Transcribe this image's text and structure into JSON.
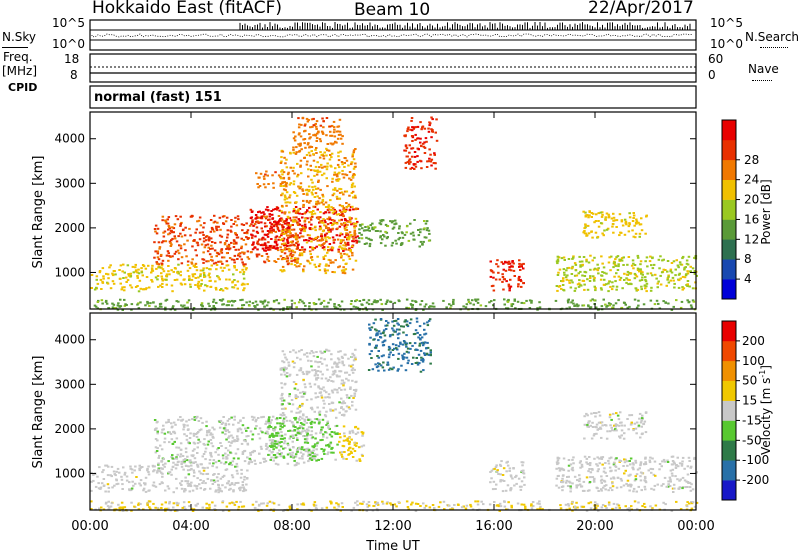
{
  "header": {
    "station": "Hokkaido East (fitACF)",
    "beam": "Beam 10",
    "date": "22/Apr/2017"
  },
  "strips": {
    "nsky_label": "N.Sky",
    "nsky_ticks": [
      "10^5",
      "10^0"
    ],
    "nsearch_label": "N.Search",
    "nsearch_ticks": [
      "10^5",
      "10^0"
    ],
    "freq_label": "Freq.",
    "freq_unit": "[MHz]",
    "freq_ticks": [
      "18",
      "8"
    ],
    "nave_label": "Nave",
    "nave_ticks": [
      "60",
      "0"
    ],
    "cpid_label": "CPID",
    "cpid_value": "normal (fast) 151"
  },
  "chart_data": [
    {
      "type": "heatmap",
      "title": "",
      "xlabel": "Time UT",
      "ylabel": "Slant Range [km]",
      "x_ticks": [
        "00:00",
        "04:00",
        "08:00",
        "12:00",
        "16:00",
        "20:00",
        "00:00"
      ],
      "xlim_hours": [
        0,
        24
      ],
      "y_ticks": [
        1000,
        2000,
        3000,
        4000
      ],
      "ylim_km": [
        180,
        4600
      ],
      "colorbar": {
        "label": "Power [dB]",
        "ticks": [
          "4",
          "8",
          "12",
          "16",
          "20",
          "24",
          "28"
        ],
        "range": [
          0,
          30
        ],
        "colors": [
          "#0000d8",
          "#1848b0",
          "#2e7050",
          "#5a9a38",
          "#9ac820",
          "#f0c000",
          "#f07800",
          "#e83000",
          "#e80000"
        ]
      },
      "regions": [
        {
          "t0": 0.0,
          "t1": 6.2,
          "r0": 600,
          "r1": 1200,
          "value": 18
        },
        {
          "t0": 2.5,
          "t1": 8.2,
          "r0": 1200,
          "r1": 2300,
          "value": 24
        },
        {
          "t0": 6.3,
          "t1": 10.6,
          "r0": 1500,
          "r1": 2500,
          "value": 28
        },
        {
          "t0": 6.5,
          "t1": 7.6,
          "r0": 2900,
          "r1": 3300,
          "value": 22
        },
        {
          "t0": 7.5,
          "t1": 10.5,
          "r0": 1000,
          "r1": 3800,
          "value": 20
        },
        {
          "t0": 8.0,
          "t1": 10.0,
          "r0": 3800,
          "r1": 4500,
          "value": 22
        },
        {
          "t0": 10.6,
          "t1": 13.5,
          "r0": 1600,
          "r1": 2200,
          "value": 12
        },
        {
          "t0": 12.4,
          "t1": 13.7,
          "r0": 3300,
          "r1": 4500,
          "value": 26
        },
        {
          "t0": 15.8,
          "t1": 17.2,
          "r0": 600,
          "r1": 1300,
          "value": 26
        },
        {
          "t0": 18.4,
          "t1": 24.0,
          "r0": 600,
          "r1": 1400,
          "value": 16
        },
        {
          "t0": 19.5,
          "t1": 22.0,
          "r0": 1800,
          "r1": 2400,
          "value": 18
        },
        {
          "t0": 0.0,
          "t1": 24.0,
          "r0": 180,
          "r1": 420,
          "value": 12
        }
      ]
    },
    {
      "type": "heatmap",
      "title": "",
      "xlabel": "Time UT",
      "ylabel": "Slant Range [km]",
      "x_ticks": [
        "00:00",
        "04:00",
        "08:00",
        "12:00",
        "16:00",
        "20:00",
        "00:00"
      ],
      "xlim_hours": [
        0,
        24
      ],
      "y_ticks": [
        1000,
        2000,
        3000,
        4000
      ],
      "ylim_km": [
        180,
        4600
      ],
      "colorbar": {
        "label": "Velocity [m s",
        "label_sup": "-1",
        "label_end": "]",
        "ticks": [
          "200",
          "100",
          "50",
          "15",
          "-15",
          "-50",
          "-100",
          "-200"
        ],
        "range": [
          -250,
          250
        ],
        "colors": [
          "#1818c8",
          "#2870a8",
          "#2e7a48",
          "#58c830",
          "#c8c8c8",
          "#f0c800",
          "#f09000",
          "#f04800",
          "#e80000"
        ]
      },
      "regions": [
        {
          "t0": 0.0,
          "t1": 6.2,
          "r0": 600,
          "r1": 1200,
          "value": 0
        },
        {
          "t0": 2.5,
          "t1": 9.0,
          "r0": 1200,
          "r1": 2300,
          "value": -5
        },
        {
          "t0": 7.0,
          "t1": 9.8,
          "r0": 1300,
          "r1": 2300,
          "value": -40
        },
        {
          "t0": 9.8,
          "t1": 10.8,
          "r0": 1300,
          "r1": 2100,
          "value": 40
        },
        {
          "t0": 7.5,
          "t1": 10.5,
          "r0": 2300,
          "r1": 3800,
          "value": 0
        },
        {
          "t0": 11.0,
          "t1": 13.5,
          "r0": 3300,
          "r1": 4500,
          "value": -150
        },
        {
          "t0": 15.8,
          "t1": 17.2,
          "r0": 600,
          "r1": 1300,
          "value": 0
        },
        {
          "t0": 18.4,
          "t1": 24.0,
          "r0": 600,
          "r1": 1400,
          "value": 0
        },
        {
          "t0": 19.5,
          "t1": 22.0,
          "r0": 1800,
          "r1": 2400,
          "value": 0
        },
        {
          "t0": 0.0,
          "t1": 24.0,
          "r0": 180,
          "r1": 400,
          "value": 30
        }
      ]
    }
  ]
}
